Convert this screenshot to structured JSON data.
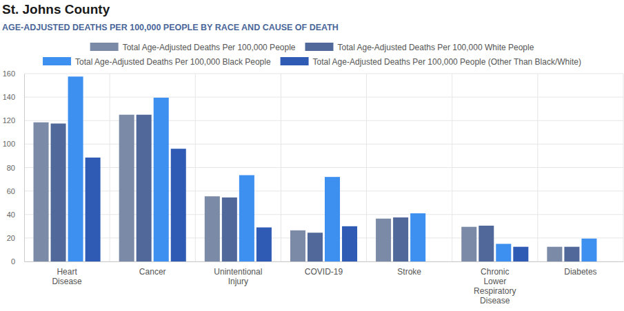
{
  "chart_data": {
    "type": "bar",
    "title": "St. Johns County",
    "subtitle": "AGE-ADJUSTED DEATHS PER 100,000 PEOPLE BY RACE AND CAUSE OF DEATH",
    "categories": [
      "Heart Disease",
      "Cancer",
      "Unintentional Injury",
      "COVID-19",
      "Stroke",
      "Chronic Lower Respiratory Disease",
      "Diabetes"
    ],
    "series": [
      {
        "name": "Total Age-Adjusted Deaths Per 100,000 People",
        "color": "#7b8aa6",
        "values": [
          118.5,
          125,
          55.5,
          26.5,
          36.5,
          29.5,
          12.5
        ]
      },
      {
        "name": "Total Age-Adjusted Deaths Per 100,000 White People",
        "color": "#51699a",
        "values": [
          117.5,
          125,
          54.5,
          24.5,
          37.5,
          30.5,
          12.5
        ]
      },
      {
        "name": "Total Age-Adjusted Deaths Per 100,000 Black People",
        "color": "#3d8ff0",
        "values": [
          157.5,
          139.5,
          73.5,
          72,
          41,
          15,
          19.5
        ]
      },
      {
        "name": "Total Age-Adjusted Deaths Per 100,000 People (Other Than Black/White)",
        "color": "#2f5bb5",
        "values": [
          88.5,
          96,
          29,
          30,
          null,
          12.5,
          null
        ]
      }
    ],
    "ylim": [
      0,
      160
    ],
    "yticks": [
      0,
      20,
      40,
      60,
      80,
      100,
      120,
      140,
      160
    ],
    "grid": true,
    "legend": "top"
  }
}
